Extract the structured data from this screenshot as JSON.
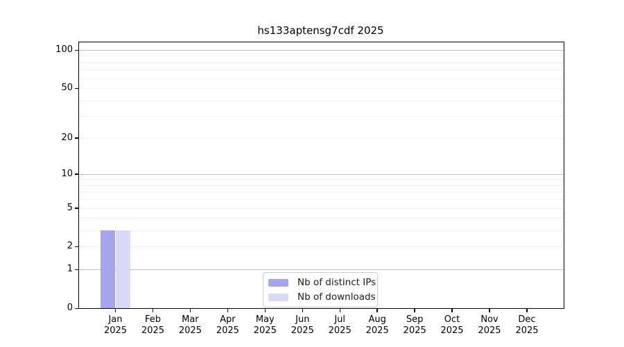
{
  "chart_data": {
    "type": "bar",
    "title": "hs133aptensg7cdf 2025",
    "categories": [
      "Jan 2025",
      "Feb 2025",
      "Mar 2025",
      "Apr 2025",
      "May 2025",
      "Jun 2025",
      "Jul 2025",
      "Aug 2025",
      "Sep 2025",
      "Oct 2025",
      "Nov 2025",
      "Dec 2025"
    ],
    "series": [
      {
        "name": "Nb of distinct IPs",
        "color": "#a4a4ef",
        "values": [
          3,
          0,
          0,
          0,
          0,
          0,
          0,
          0,
          0,
          0,
          0,
          0
        ]
      },
      {
        "name": "Nb of downloads",
        "color": "#d9d9f8",
        "values": [
          3,
          0,
          0,
          0,
          0,
          0,
          0,
          0,
          0,
          0,
          0,
          0
        ]
      }
    ],
    "xlabel": "",
    "ylabel": "",
    "yscale": "log1p",
    "ylim": [
      0,
      115
    ],
    "yticks": [
      100,
      50,
      20,
      10,
      5,
      2,
      1,
      0
    ],
    "grid": true,
    "major_gridlines": [
      1,
      10,
      100
    ],
    "minor_gridlines": [
      2,
      3,
      4,
      5,
      6,
      7,
      8,
      9,
      20,
      30,
      40,
      50,
      60,
      70,
      80,
      90
    ],
    "legend": {
      "position": "lower center",
      "entries": [
        "Nb of distinct IPs",
        "Nb of downloads"
      ]
    },
    "colors": {
      "spine": "#000000",
      "major_grid": "#bdbdbd",
      "minor_grid": "#efefef",
      "text": "#000000",
      "background": "#ffffff"
    }
  }
}
